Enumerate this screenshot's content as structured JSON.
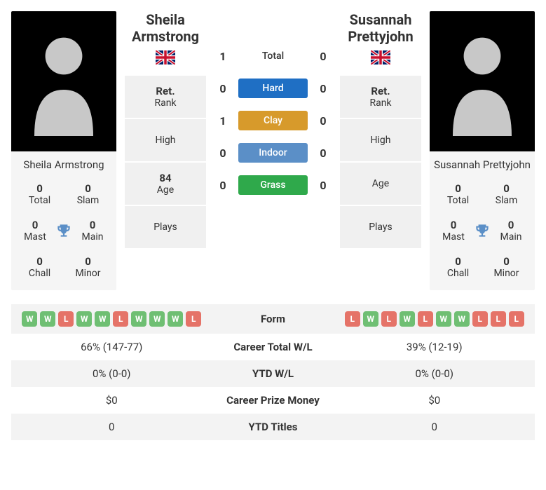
{
  "colors": {
    "win_badge": "#6fbf73",
    "loss_badge": "#e57368",
    "hard": "#1f6fc4",
    "clay": "#d79a2b",
    "indoor": "#5b8fc7",
    "grass": "#2fa94b",
    "card_bg": "#f5f5f5",
    "statcard_bg": "#f0f0f0",
    "row_alt": "#f3f3f3",
    "trophy": "#5b8fc7",
    "silhouette": "#c8c8c8",
    "text": "#333333"
  },
  "player1": {
    "name": "Sheila Armstrong",
    "short_name": "Sheila Armstrong",
    "flag": "gb",
    "titles": {
      "total": {
        "num": "0",
        "lbl": "Total"
      },
      "slam": {
        "num": "0",
        "lbl": "Slam"
      },
      "mast": {
        "num": "0",
        "lbl": "Mast"
      },
      "main": {
        "num": "0",
        "lbl": "Main"
      },
      "chall": {
        "num": "0",
        "lbl": "Chall"
      },
      "minor": {
        "num": "0",
        "lbl": "Minor"
      }
    },
    "stats": {
      "rank": {
        "val": "Ret.",
        "lbl": "Rank"
      },
      "high": {
        "val": "",
        "lbl": "High"
      },
      "age": {
        "val": "84",
        "lbl": "Age"
      },
      "plays": {
        "val": "",
        "lbl": "Plays"
      }
    },
    "form": [
      "W",
      "W",
      "L",
      "W",
      "W",
      "L",
      "W",
      "W",
      "W",
      "L"
    ]
  },
  "player2": {
    "name": "Susannah Prettyjohn",
    "short_name": "Susannah Prettyjohn",
    "flag": "gb",
    "titles": {
      "total": {
        "num": "0",
        "lbl": "Total"
      },
      "slam": {
        "num": "0",
        "lbl": "Slam"
      },
      "mast": {
        "num": "0",
        "lbl": "Mast"
      },
      "main": {
        "num": "0",
        "lbl": "Main"
      },
      "chall": {
        "num": "0",
        "lbl": "Chall"
      },
      "minor": {
        "num": "0",
        "lbl": "Minor"
      }
    },
    "stats": {
      "rank": {
        "val": "Ret.",
        "lbl": "Rank"
      },
      "high": {
        "val": "",
        "lbl": "High"
      },
      "age": {
        "val": "",
        "lbl": "Age"
      },
      "plays": {
        "val": "",
        "lbl": "Plays"
      }
    },
    "form": [
      "L",
      "W",
      "L",
      "W",
      "L",
      "W",
      "W",
      "L",
      "L",
      "L"
    ]
  },
  "h2h": {
    "total": {
      "p1": "1",
      "label": "Total",
      "p2": "0"
    },
    "hard": {
      "p1": "0",
      "label": "Hard",
      "p2": "0"
    },
    "clay": {
      "p1": "1",
      "label": "Clay",
      "p2": "0"
    },
    "indoor": {
      "p1": "0",
      "label": "Indoor",
      "p2": "0"
    },
    "grass": {
      "p1": "0",
      "label": "Grass",
      "p2": "0"
    }
  },
  "compare": {
    "form_label": "Form",
    "career_wl": {
      "label": "Career Total W/L",
      "p1": "66% (147-77)",
      "p2": "39% (12-19)"
    },
    "ytd_wl": {
      "label": "YTD W/L",
      "p1": "0% (0-0)",
      "p2": "0% (0-0)"
    },
    "prize": {
      "label": "Career Prize Money",
      "p1": "$0",
      "p2": "$0"
    },
    "ytd_titles": {
      "label": "YTD Titles",
      "p1": "0",
      "p2": "0"
    }
  }
}
